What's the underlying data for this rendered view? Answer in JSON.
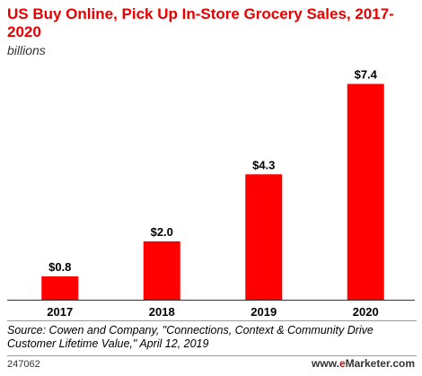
{
  "chart_data": {
    "type": "bar",
    "title": "US Buy Online, Pick Up In-Store Grocery Sales, 2017-2020",
    "subtitle": "billions",
    "categories": [
      "2017",
      "2018",
      "2019",
      "2020"
    ],
    "values": [
      0.8,
      2.0,
      4.3,
      7.4
    ],
    "data_labels": [
      "$0.8",
      "$2.0",
      "$4.3",
      "$7.4"
    ],
    "ylim": [
      0,
      8
    ],
    "bar_color": "#ff0000",
    "grid": false,
    "legend": "none"
  },
  "footer": {
    "source": "Source: Cowen and Company, \"Connections, Context & Community Drive Customer Lifetime Value,\" April 12, 2019",
    "chart_id": "247062",
    "brand_prefix": "www.",
    "brand_accent": "e",
    "brand_suffix": "Marketer.com"
  }
}
